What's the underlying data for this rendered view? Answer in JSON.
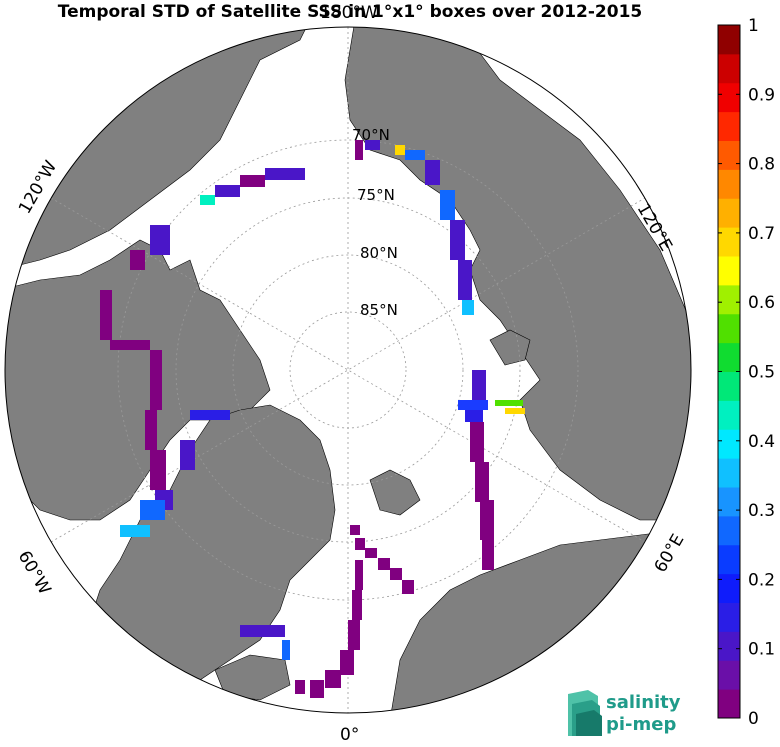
{
  "title": "Temporal STD of Satellite SSS in 1°x1° boxes over 2012-2015",
  "map": {
    "projection": "north-polar-stereographic",
    "lat_labels": [
      "70°N",
      "75°N",
      "80°N",
      "85°N"
    ],
    "lon_labels": {
      "top": "180°W",
      "upper_left": "120°W",
      "upper_right": "120°E",
      "lower_left": "60°W",
      "lower_right": "60°E",
      "bottom": "0°"
    },
    "land_color": "#808080",
    "ocean_color": "#ffffff"
  },
  "colorbar": {
    "min": 0,
    "max": 1,
    "tick_labels": [
      "1",
      "0.9",
      "0.8",
      "0.7",
      "0.6",
      "0.5",
      "0.4",
      "0.3",
      "0.2",
      "0.1",
      "0"
    ],
    "colors": [
      "#800080",
      "#6a0fa8",
      "#4a16c8",
      "#2a1ee6",
      "#0f1cfb",
      "#0a3cff",
      "#1068ff",
      "#1894ff",
      "#10c0ff",
      "#00e8ff",
      "#00f0c0",
      "#00e878",
      "#10dc30",
      "#50e000",
      "#a0f000",
      "#ffff00",
      "#ffd800",
      "#ffb000",
      "#ff8800",
      "#ff5a00",
      "#ff2800",
      "#f00000",
      "#cc0000",
      "#900000"
    ]
  },
  "logo": {
    "line1": "salinity",
    "line2": "pi-mep",
    "color": "#1f9b8a"
  }
}
